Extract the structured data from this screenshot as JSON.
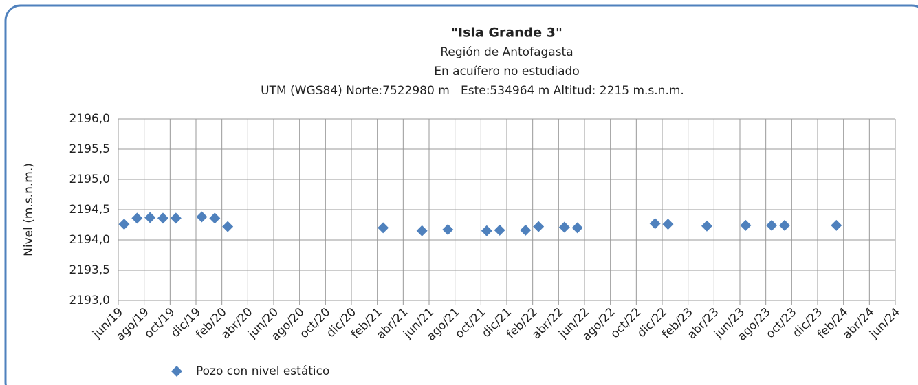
{
  "chart_data": {
    "type": "scatter",
    "title": "\"Isla Grande 3\"",
    "subtitles": [
      "Región de Antofagasta",
      "En acuífero no estudiado",
      "UTM (WGS84) Norte:7522980 m   Este:534964 m Altitud: 2215 m.s.n.m."
    ],
    "y_label": "Nivel (m.s.n.m.)",
    "series": [
      {
        "name": "Pozo con nivel estático",
        "color": "#4f81bd",
        "x": [
          "2019-06",
          "2019-07",
          "2019-08",
          "2019-09",
          "2019-10",
          "2019-12",
          "2020-01",
          "2020-02",
          "2021-02",
          "2021-05",
          "2021-07",
          "2021-10",
          "2021-11",
          "2022-01",
          "2022-02",
          "2022-04",
          "2022-05",
          "2022-11",
          "2022-12",
          "2023-03",
          "2023-06",
          "2023-08",
          "2023-09",
          "2024-01"
        ],
        "values": [
          2194.26,
          2194.36,
          2194.37,
          2194.36,
          2194.36,
          2194.38,
          2194.36,
          2194.22,
          2194.2,
          2194.15,
          2194.17,
          2194.15,
          2194.16,
          2194.16,
          2194.22,
          2194.21,
          2194.2,
          2194.27,
          2194.26,
          2194.23,
          2194.24,
          2194.24,
          2194.24,
          2194.24
        ]
      }
    ],
    "xlim": [
      "2019-06",
      "2024-06"
    ],
    "xticks": [
      {
        "value": "2019-06",
        "label": "jun/19"
      },
      {
        "value": "2019-08",
        "label": "ago/19"
      },
      {
        "value": "2019-10",
        "label": "oct/19"
      },
      {
        "value": "2019-12",
        "label": "dic/19"
      },
      {
        "value": "2020-02",
        "label": "feb/20"
      },
      {
        "value": "2020-04",
        "label": "abr/20"
      },
      {
        "value": "2020-06",
        "label": "jun/20"
      },
      {
        "value": "2020-08",
        "label": "ago/20"
      },
      {
        "value": "2020-10",
        "label": "oct/20"
      },
      {
        "value": "2020-12",
        "label": "dic/20"
      },
      {
        "value": "2021-02",
        "label": "feb/21"
      },
      {
        "value": "2021-04",
        "label": "abr/21"
      },
      {
        "value": "2021-06",
        "label": "jun/21"
      },
      {
        "value": "2021-08",
        "label": "ago/21"
      },
      {
        "value": "2021-10",
        "label": "oct/21"
      },
      {
        "value": "2021-12",
        "label": "dic/21"
      },
      {
        "value": "2022-02",
        "label": "feb/22"
      },
      {
        "value": "2022-04",
        "label": "abr/22"
      },
      {
        "value": "2022-06",
        "label": "jun/22"
      },
      {
        "value": "2022-08",
        "label": "ago/22"
      },
      {
        "value": "2022-10",
        "label": "oct/22"
      },
      {
        "value": "2022-12",
        "label": "dic/22"
      },
      {
        "value": "2023-02",
        "label": "feb/23"
      },
      {
        "value": "2023-04",
        "label": "abr/23"
      },
      {
        "value": "2023-06",
        "label": "jun/23"
      },
      {
        "value": "2023-08",
        "label": "ago/23"
      },
      {
        "value": "2023-10",
        "label": "oct/23"
      },
      {
        "value": "2023-12",
        "label": "dic/23"
      },
      {
        "value": "2024-02",
        "label": "feb/24"
      },
      {
        "value": "2024-04",
        "label": "abr/24"
      },
      {
        "value": "2024-06",
        "label": "jun/24"
      }
    ],
    "ylim": [
      2193,
      2196
    ],
    "yticks": [
      {
        "value": 2193,
        "label": "2193,0"
      },
      {
        "value": 2193.5,
        "label": "2193,5"
      },
      {
        "value": 2194,
        "label": "2194,0"
      },
      {
        "value": 2194.5,
        "label": "2194,5"
      },
      {
        "value": 2195,
        "label": "2195,0"
      },
      {
        "value": 2195.5,
        "label": "2195,5"
      },
      {
        "value": 2196,
        "label": "2196,0"
      }
    ],
    "grid": true
  }
}
